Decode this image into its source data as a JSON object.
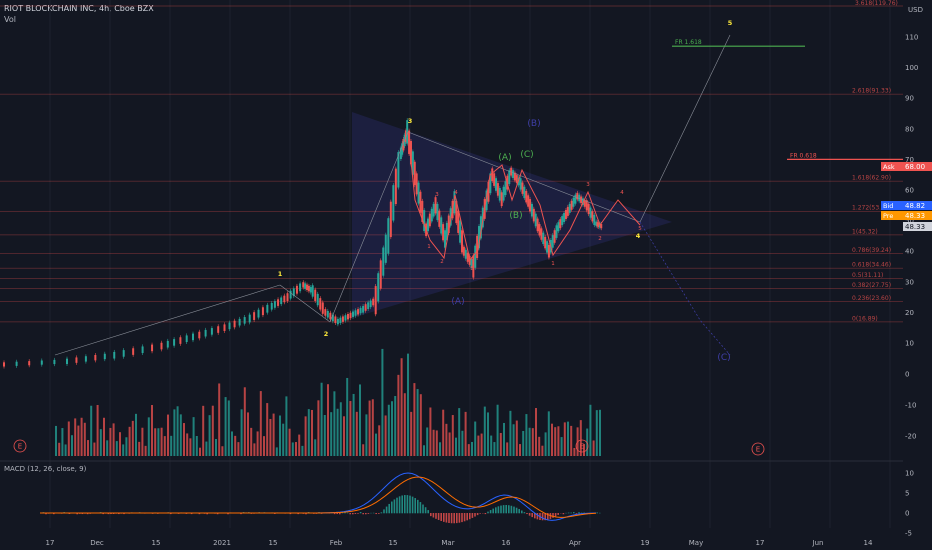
{
  "header": {
    "symbol_line": "RIOT BLOCKCHAIN INC, 4h, Cboe BZX",
    "volume_label": "Vol"
  },
  "macd_label": "MACD (12, 26, close, 9)",
  "currency": "USD",
  "price_axis": {
    "ticks": [
      110,
      100,
      90,
      80,
      70,
      60,
      50,
      40,
      30,
      20,
      10
    ],
    "volume_ticks": [
      0,
      -10,
      -20
    ],
    "macd_ticks": [
      10,
      5,
      0,
      -5
    ]
  },
  "badges": {
    "ask_label": "Ask",
    "ask_value": "68.00",
    "bid_label": "Bid",
    "bid_value": "48.82",
    "pre_label": "Pre",
    "pre_value": "48.33",
    "last_value": "48.33"
  },
  "colors": {
    "up": "#26a69a",
    "down": "#ef5350",
    "fib": "#ef5350",
    "wave_yellow": "#ffeb3b",
    "wave_green": "#4caf50",
    "triangle": "#3f3fa8",
    "ask": "#ef5350",
    "bid": "#2962ff",
    "pre": "#ff9800"
  },
  "chart_data": {
    "type": "candlestick",
    "title": "RIOT BLOCKCHAIN INC, 4h, Cboe BZX",
    "x_ticks": [
      "17",
      "Dec",
      "15",
      "2021",
      "15",
      "Feb",
      "15",
      "Mar",
      "16",
      "Apr",
      "19",
      "May",
      "17",
      "Jun",
      "14"
    ],
    "price_ylim": [
      0,
      115
    ],
    "fib_levels": [
      {
        "label": "2.618(91.33)",
        "value": 91.33
      },
      {
        "label": "1.618(62.90)",
        "value": 62.9
      },
      {
        "label": "1.272(53.06)",
        "value": 53.06
      },
      {
        "label": "1(45.32)",
        "value": 45.32
      },
      {
        "label": "0.786(39.24)",
        "value": 39.24
      },
      {
        "label": "0.618(34.46)",
        "value": 34.46
      },
      {
        "label": "0.5(31.11)",
        "value": 31.11
      },
      {
        "label": "0.382(27.75)",
        "value": 27.75
      },
      {
        "label": "0.236(23.60)",
        "value": 23.6
      },
      {
        "label": "0(16.89)",
        "value": 16.89
      }
    ],
    "fib_top_label": "3.618(119.76)",
    "fr_lines": [
      {
        "label": "FR 1.618",
        "value": 107
      },
      {
        "label": "FR 0.618",
        "value": 70
      }
    ],
    "wave_labels": [
      {
        "text": "1",
        "date": "2021-01-15",
        "price": 30
      },
      {
        "text": "2",
        "date": "2021-01-28",
        "price": 15
      },
      {
        "text": "3",
        "date": "2021-02-17",
        "price": 82
      },
      {
        "text": "(A)",
        "date": "2021-03-12",
        "price": 68
      },
      {
        "text": "(B)",
        "date": "2021-03-17",
        "price": 52
      },
      {
        "text": "(C)",
        "date": "2021-03-23",
        "price": 69
      },
      {
        "text": "(B)",
        "date": "2021-03-20",
        "price": 82
      },
      {
        "text": "4",
        "date": "2021-04-12",
        "price": 44
      },
      {
        "text": "5",
        "date": "2021-05-07",
        "price": 115
      },
      {
        "text": "(A)",
        "date": "2021-03-01",
        "price": 22
      },
      {
        "text": "(C)",
        "date": "2021-05-07",
        "price": 5
      }
    ],
    "sub_labels": [
      "1",
      "2",
      "3",
      "4",
      "5",
      "1",
      "2",
      "3",
      "4",
      "5"
    ],
    "earnings_marker": "E",
    "series": [
      {
        "name": "price",
        "points": [
          [
            0,
            3
          ],
          [
            20,
            4
          ],
          [
            35,
            6
          ],
          [
            50,
            9
          ],
          [
            60,
            12
          ],
          [
            70,
            15
          ],
          [
            78,
            18
          ],
          [
            85,
            22
          ],
          [
            90,
            25
          ],
          [
            95,
            29
          ],
          [
            98,
            27
          ],
          [
            102,
            20
          ],
          [
            106,
            17
          ],
          [
            110,
            19
          ],
          [
            114,
            21
          ],
          [
            118,
            24
          ],
          [
            122,
            45
          ],
          [
            126,
            72
          ],
          [
            128,
            79
          ],
          [
            131,
            62
          ],
          [
            134,
            47
          ],
          [
            137,
            55
          ],
          [
            140,
            44
          ],
          [
            143,
            56
          ],
          [
            146,
            40
          ],
          [
            149,
            35
          ],
          [
            152,
            51
          ],
          [
            155,
            65
          ],
          [
            158,
            57
          ],
          [
            161,
            66
          ],
          [
            164,
            62
          ],
          [
            167,
            55
          ],
          [
            170,
            47
          ],
          [
            173,
            40
          ],
          [
            176,
            48
          ],
          [
            179,
            53
          ],
          [
            182,
            58
          ],
          [
            185,
            55
          ],
          [
            188,
            49
          ],
          [
            190,
            48
          ]
        ]
      }
    ]
  }
}
